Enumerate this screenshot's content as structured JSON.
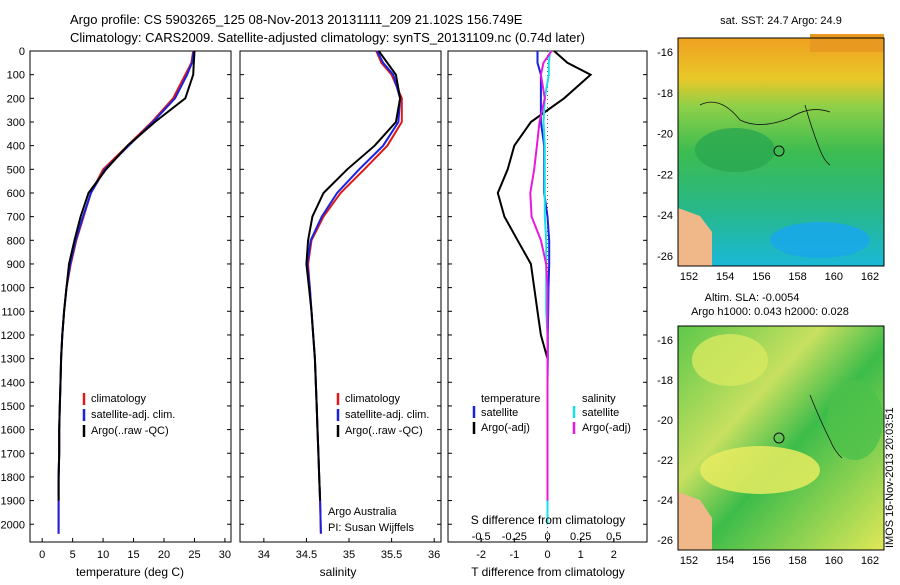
{
  "header": {
    "line1": "Argo profile: CS 5903265_125 08-Nov-2013 20131111_209 21.102S 156.749E",
    "line2": "Climatology: CARS2009. Satellite-adjusted climatology: synTS_20131109.nc (0.74d later)"
  },
  "colors": {
    "climatology": "#e01818",
    "satellite": "#1a22e0",
    "argo": "#000000",
    "sat_salinity": "#18e0e8",
    "argo_salinity_adj": "#e818e0"
  },
  "depth_axis": {
    "ticks": [
      "0",
      "100",
      "200",
      "300",
      "400",
      "500",
      "600",
      "700",
      "800",
      "900",
      "1000",
      "1100",
      "1200",
      "1300",
      "1400",
      "1500",
      "1600",
      "1700",
      "1800",
      "1900",
      "2000"
    ]
  },
  "panels": {
    "temperature": {
      "xlabel": "temperature (deg C)",
      "ticks": [
        "0",
        "5",
        "10",
        "15",
        "20",
        "25",
        "30"
      ]
    },
    "salinity": {
      "xlabel": "salinity",
      "ticks": [
        "34",
        "34.5",
        "35",
        "35.5",
        "36"
      ],
      "note1": "Argo Australia",
      "note2": "PI: Susan Wijffels"
    },
    "difference": {
      "xlabel": "T difference from climatology",
      "s_title": "S difference from climatology",
      "s_ticks": [
        "-0.5",
        "-0.25",
        "0",
        "0.25",
        "0.5"
      ],
      "t_ticks": [
        "-2",
        "-1",
        "0",
        "1",
        "2"
      ]
    }
  },
  "legend_profiles": [
    "climatology",
    "satellite-adj. clim.",
    "Argo(..raw -QC)"
  ],
  "legend_diff": {
    "temp_head": "temperature",
    "sal_head": "salinity",
    "satellite": "satellite",
    "argo_adj": "Argo(-adj)"
  },
  "maps": {
    "sst_title": "sat. SST: 24.7  Argo: 24.9",
    "sla_title1": "Altim. SLA: -0.0054",
    "sla_title2": "Argo h1000: 0.043 h2000: 0.028",
    "lat_ticks": [
      "-16",
      "-18",
      "-20",
      "-22",
      "-24",
      "-26"
    ],
    "lon_ticks": [
      "152",
      "154",
      "156",
      "158",
      "160",
      "162"
    ],
    "stamp": "IMOS 16-Nov-2013 20:03:51"
  },
  "chart_data": [
    {
      "type": "line",
      "title": "",
      "xlabel": "temperature (deg C)",
      "ylabel": "",
      "xlim": [
        -2,
        31
      ],
      "ylim": [
        2075,
        0
      ],
      "series": [
        {
          "name": "climatology",
          "x": [
            24.8,
            24.5,
            23.5,
            21.5,
            18,
            14,
            10,
            8,
            6.8,
            5.6,
            4.7,
            4,
            3.6,
            3.3,
            3.1,
            3,
            2.9,
            2.8,
            2.8,
            2.7,
            2.7,
            2.7
          ],
          "y": [
            0,
            50,
            100,
            200,
            300,
            400,
            500,
            600,
            700,
            800,
            900,
            1000,
            1100,
            1200,
            1300,
            1400,
            1500,
            1600,
            1700,
            1800,
            1900,
            2040
          ]
        },
        {
          "name": "satellite-adj. clim.",
          "x": [
            24.9,
            24.6,
            23.8,
            21.8,
            18.2,
            14.2,
            10.3,
            8,
            6.7,
            5.5,
            4.6,
            4,
            3.6,
            3.3,
            3.1,
            3,
            2.9,
            2.8,
            2.8,
            2.7,
            2.7,
            2.7
          ],
          "y": [
            0,
            50,
            100,
            200,
            300,
            400,
            500,
            600,
            700,
            800,
            900,
            1000,
            1100,
            1200,
            1300,
            1400,
            1500,
            1600,
            1700,
            1800,
            1900,
            2040
          ]
        },
        {
          "name": "Argo(..raw -QC)",
          "x": [
            25,
            24.9,
            24.8,
            23.5,
            18.5,
            14,
            10.5,
            7.6,
            6.3,
            5.3,
            4.4,
            4,
            3.6,
            3.3,
            3.1,
            3,
            2.9,
            2.8,
            2.8,
            2.7,
            2.7
          ],
          "y": [
            0,
            50,
            100,
            200,
            300,
            400,
            500,
            600,
            700,
            800,
            900,
            1000,
            1100,
            1200,
            1300,
            1400,
            1500,
            1600,
            1700,
            1800,
            1900
          ]
        }
      ]
    },
    {
      "type": "line",
      "title": "",
      "xlabel": "salinity",
      "ylabel": "",
      "xlim": [
        33.72,
        36.08
      ],
      "ylim": [
        2075,
        0
      ],
      "series": [
        {
          "name": "climatology",
          "x": [
            35.32,
            35.38,
            35.5,
            35.62,
            35.62,
            35.45,
            35.18,
            34.9,
            34.7,
            34.56,
            34.52,
            34.54,
            34.56,
            34.58,
            34.6,
            34.61,
            34.62,
            34.63,
            34.64,
            34.65,
            34.66,
            34.67
          ],
          "y": [
            0,
            50,
            100,
            200,
            300,
            400,
            500,
            600,
            700,
            800,
            900,
            1000,
            1100,
            1200,
            1300,
            1400,
            1500,
            1600,
            1700,
            1800,
            1900,
            2040
          ]
        },
        {
          "name": "satellite-adj. clim.",
          "x": [
            35.33,
            35.4,
            35.52,
            35.6,
            35.58,
            35.4,
            35.12,
            34.86,
            34.68,
            34.55,
            34.51,
            34.54,
            34.56,
            34.58,
            34.6,
            34.61,
            34.62,
            34.63,
            34.64,
            34.65,
            34.66,
            34.67
          ],
          "y": [
            0,
            50,
            100,
            200,
            300,
            400,
            500,
            600,
            700,
            800,
            900,
            1000,
            1100,
            1200,
            1300,
            1400,
            1500,
            1600,
            1700,
            1800,
            1900,
            2040
          ]
        },
        {
          "name": "Argo(..raw -QC)",
          "x": [
            35.35,
            35.45,
            35.55,
            35.6,
            35.55,
            35.3,
            34.98,
            34.7,
            34.57,
            34.52,
            34.5,
            34.53,
            34.56,
            34.58,
            34.6,
            34.61,
            34.62,
            34.63,
            34.64,
            34.65,
            34.66
          ],
          "y": [
            0,
            50,
            100,
            200,
            300,
            400,
            500,
            600,
            700,
            800,
            900,
            1000,
            1100,
            1200,
            1300,
            1400,
            1500,
            1600,
            1700,
            1800,
            1900
          ]
        }
      ]
    },
    {
      "type": "line",
      "title": "",
      "xlabel": "T difference from climatology",
      "ylabel": "",
      "xlim": [
        -3,
        3
      ],
      "ylim": [
        2075,
        0
      ],
      "series": [
        {
          "name": "temperature satellite",
          "x": [
            -0.3,
            -0.3,
            -0.2,
            -0.2,
            -0.2,
            -0.1,
            -0.1,
            -0.1,
            0,
            0.05,
            0.05,
            0.03,
            0.02,
            0.01,
            0.01,
            0,
            0,
            0,
            0,
            0
          ],
          "y": [
            0,
            50,
            100,
            200,
            300,
            400,
            500,
            600,
            700,
            800,
            900,
            1000,
            1100,
            1200,
            1300,
            1400,
            1500,
            1600,
            1800,
            2000
          ]
        },
        {
          "name": "temperature Argo(-adj)",
          "x": [
            0.2,
            0.6,
            1.3,
            0.5,
            -0.5,
            -1,
            -1.2,
            -1.5,
            -1.3,
            -0.9,
            -0.5,
            -0.4,
            -0.3,
            -0.2,
            0,
            0,
            0,
            0,
            0,
            0,
            0
          ],
          "y": [
            0,
            50,
            100,
            200,
            300,
            400,
            500,
            600,
            700,
            800,
            900,
            1000,
            1100,
            1200,
            1300,
            1400,
            1500,
            1600,
            1700,
            1800,
            1900
          ]
        },
        {
          "name": "salinity satellite",
          "x": [
            0.02,
            0.01,
            0.01,
            -0.02,
            -0.03,
            -0.02,
            -0.02,
            -0.02,
            -0.02,
            -0.01,
            -0.01,
            -0.01,
            -0.01,
            0,
            0,
            0,
            0,
            0,
            0,
            0
          ],
          "y": [
            0,
            50,
            100,
            200,
            300,
            400,
            500,
            600,
            700,
            800,
            900,
            1000,
            1100,
            1200,
            1300,
            1400,
            1500,
            1600,
            1800,
            2000
          ]
        },
        {
          "name": "salinity Argo(-adj)",
          "x": [
            0.03,
            -0.03,
            -0.05,
            -0.02,
            -0.06,
            -0.08,
            -0.1,
            -0.13,
            -0.12,
            -0.05,
            -0.01,
            0,
            0,
            0,
            0,
            0,
            0,
            0,
            0
          ],
          "y": [
            0,
            50,
            100,
            200,
            300,
            400,
            500,
            600,
            700,
            800,
            900,
            1000,
            1100,
            1200,
            1300,
            1400,
            1500,
            1600,
            1900
          ]
        }
      ]
    }
  ]
}
